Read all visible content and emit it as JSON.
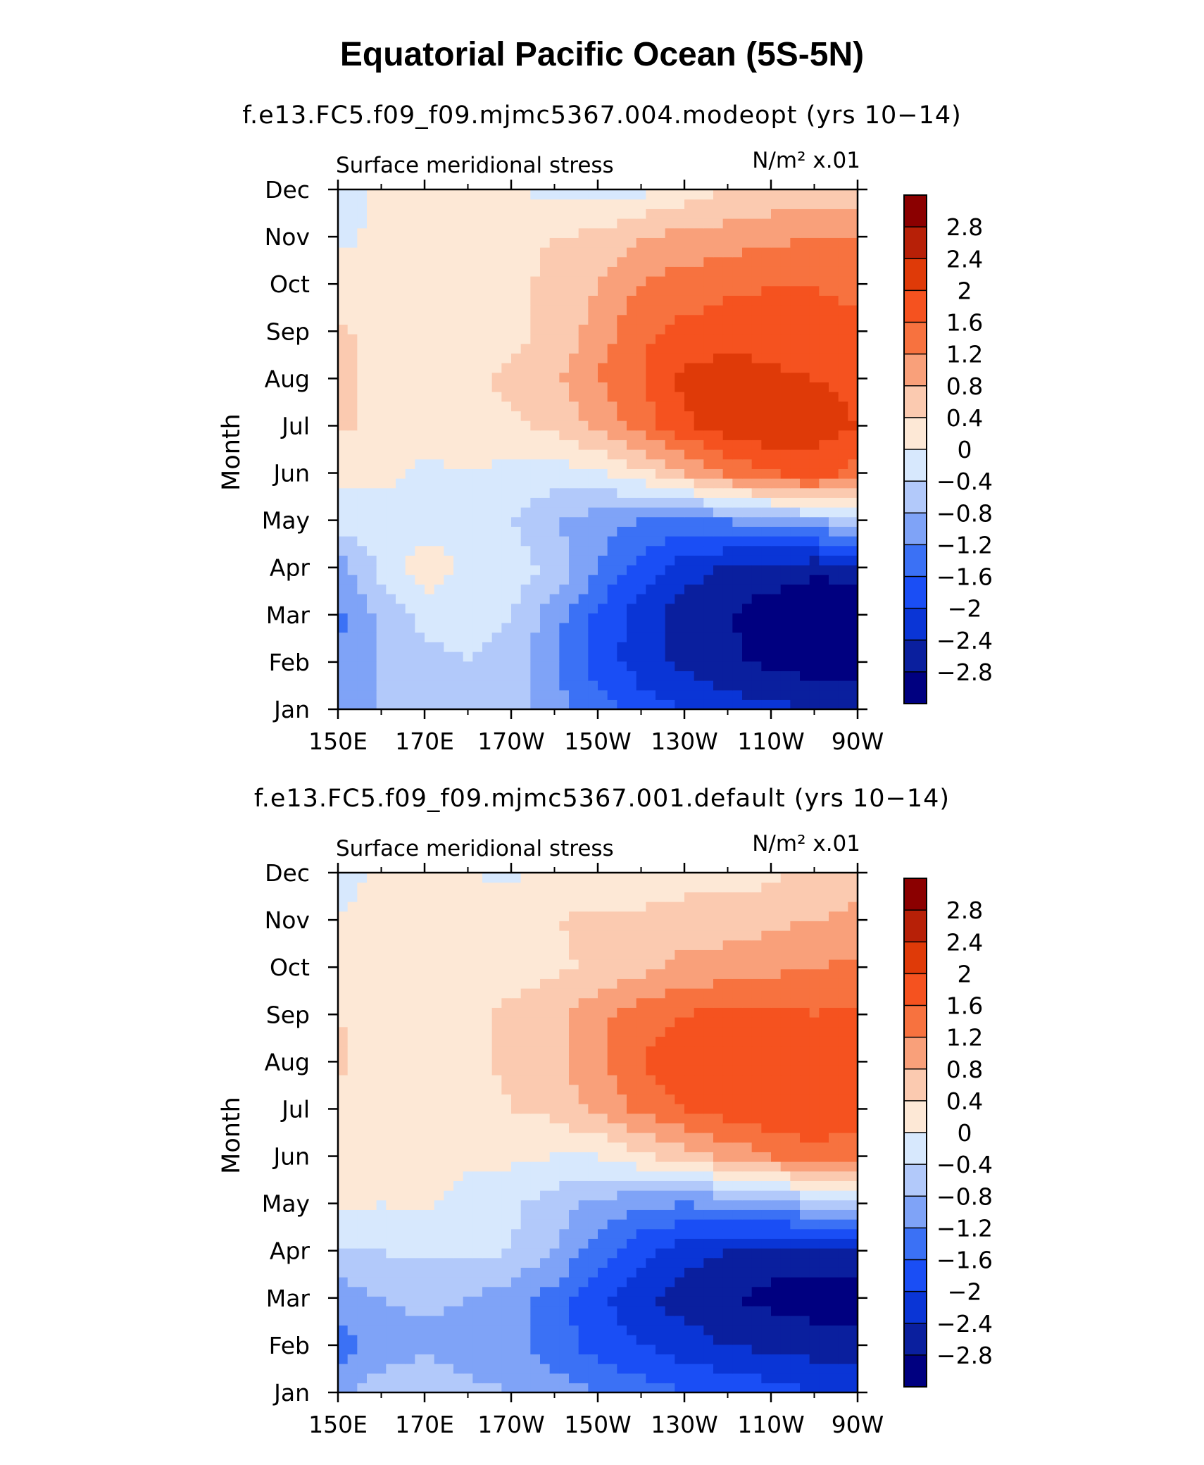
{
  "figure": {
    "title": "Equatorial Pacific Ocean (5S-5N)"
  },
  "palette": {
    "levels": [
      -2.8,
      -2.4,
      -2,
      -1.6,
      -1.2,
      -0.8,
      -0.4,
      0,
      0.4,
      0.8,
      1.2,
      1.6,
      2,
      2.4,
      2.8
    ],
    "colors": [
      "#000080",
      "#0a1f9e",
      "#0a35d6",
      "#1a4ef5",
      "#3b71f5",
      "#7fa3f7",
      "#b2c9fa",
      "#d7e8fd",
      "#fde8d6",
      "#fbcab0",
      "#f9a07a",
      "#f7723f",
      "#f5521f",
      "#df3a08",
      "#b72007",
      "#8b0000"
    ]
  },
  "chart_data": [
    {
      "type": "heatmap",
      "subtitle": "f.e13.FC5.f09_f09.mjmc5367.004.modeopt (yrs 10−14)",
      "left_label": "Surface meridional stress",
      "right_label": "N/m² x.01",
      "ylabel": "Month",
      "xlabel": "",
      "x_tick_labels": [
        "150E",
        "170E",
        "170W",
        "150W",
        "130W",
        "110W",
        "90W"
      ],
      "y_tick_labels": [
        "Jan",
        "Feb",
        "Mar",
        "Apr",
        "May",
        "Jun",
        "Jul",
        "Aug",
        "Sep",
        "Oct",
        "Nov",
        "Dec"
      ],
      "x": [
        150,
        160,
        170,
        180,
        190,
        200,
        210,
        220,
        230,
        240,
        250,
        260,
        270
      ],
      "y": [
        "Jan",
        "Feb",
        "Mar",
        "Apr",
        "May",
        "Jun",
        "Jul",
        "Aug",
        "Sep",
        "Oct",
        "Nov",
        "Dec"
      ],
      "z": [
        [
          -1.0,
          -0.8,
          -0.6,
          -0.5,
          -0.6,
          -1.0,
          -1.4,
          -1.8,
          -2.0,
          -2.2,
          -2.3,
          -2.4,
          -2.5
        ],
        [
          -1.2,
          -0.8,
          -0.5,
          -0.4,
          -0.5,
          -1.2,
          -1.8,
          -2.2,
          -2.5,
          -2.7,
          -2.9,
          -3.0,
          -3.0
        ],
        [
          -1.3,
          -0.7,
          -0.3,
          -0.3,
          -0.4,
          -1.0,
          -1.7,
          -2.2,
          -2.6,
          -2.8,
          -3.0,
          -3.2,
          -3.1
        ],
        [
          -1.0,
          -0.3,
          0.3,
          -0.1,
          -0.2,
          -0.5,
          -1.2,
          -1.8,
          -2.2,
          -2.5,
          -2.6,
          -2.7,
          -2.6
        ],
        [
          -0.2,
          -0.2,
          -0.2,
          -0.3,
          -0.4,
          -0.8,
          -1.0,
          -1.2,
          -1.3,
          -1.2,
          -1.0,
          -0.8,
          -0.6
        ],
        [
          0.1,
          0.1,
          -0.1,
          0.0,
          -0.1,
          -0.2,
          -0.1,
          0.3,
          0.8,
          1.3,
          1.6,
          1.8,
          1.4
        ],
        [
          0.5,
          0.2,
          0.2,
          0.2,
          0.3,
          0.5,
          0.9,
          1.4,
          1.9,
          2.2,
          2.3,
          2.2,
          2.0
        ],
        [
          0.6,
          0.2,
          0.2,
          0.3,
          0.5,
          0.7,
          1.2,
          1.6,
          2.1,
          2.2,
          2.1,
          2.0,
          1.9
        ],
        [
          0.5,
          0.2,
          0.2,
          0.2,
          0.3,
          0.5,
          1.0,
          1.5,
          1.7,
          1.8,
          1.8,
          1.7,
          1.7
        ],
        [
          0.2,
          0.1,
          0.1,
          0.1,
          0.3,
          0.5,
          0.8,
          1.2,
          1.4,
          1.5,
          1.6,
          1.6,
          1.5
        ],
        [
          -0.1,
          0.1,
          0.2,
          0.2,
          0.3,
          0.4,
          0.5,
          0.8,
          0.9,
          1.0,
          1.1,
          1.2,
          1.2
        ],
        [
          -0.2,
          0.1,
          0.1,
          0.1,
          0.0,
          -0.1,
          -0.2,
          -0.1,
          0.2,
          0.4,
          0.5,
          0.6,
          0.6
        ]
      ],
      "colorbar": {
        "levels": [
          -2.8,
          -2.4,
          -2,
          -1.6,
          -1.2,
          -0.8,
          -0.4,
          0,
          0.4,
          0.8,
          1.2,
          1.6,
          2,
          2.4,
          2.8
        ],
        "labels": [
          "−2.8",
          "−2.4",
          "−2",
          "−1.6",
          "−1.2",
          "−0.8",
          "−0.4",
          "0",
          "0.4",
          "0.8",
          "1.2",
          "1.6",
          "2",
          "2.4",
          "2.8"
        ]
      }
    },
    {
      "type": "heatmap",
      "subtitle": "f.e13.FC5.f09_f09.mjmc5367.001.default (yrs 10−14)",
      "left_label": "Surface meridional stress",
      "right_label": "N/m² x.01",
      "ylabel": "Month",
      "xlabel": "",
      "x_tick_labels": [
        "150E",
        "170E",
        "170W",
        "150W",
        "130W",
        "110W",
        "90W"
      ],
      "y_tick_labels": [
        "Jan",
        "Feb",
        "Mar",
        "Apr",
        "May",
        "Jun",
        "Jul",
        "Aug",
        "Sep",
        "Oct",
        "Nov",
        "Dec"
      ],
      "x": [
        150,
        160,
        170,
        180,
        190,
        200,
        210,
        220,
        230,
        240,
        250,
        260,
        270
      ],
      "y": [
        "Jan",
        "Feb",
        "Mar",
        "Apr",
        "May",
        "Jun",
        "Jul",
        "Aug",
        "Sep",
        "Oct",
        "Nov",
        "Dec"
      ],
      "z": [
        [
          -0.9,
          -0.6,
          -0.5,
          -0.7,
          -0.8,
          -1.0,
          -1.2,
          -1.4,
          -1.6,
          -1.7,
          -1.8,
          -2.0,
          -2.2
        ],
        [
          -1.4,
          -1.0,
          -0.9,
          -1.0,
          -1.1,
          -1.4,
          -1.8,
          -2.0,
          -2.2,
          -2.4,
          -2.5,
          -2.6,
          -2.6
        ],
        [
          -1.0,
          -0.8,
          -0.7,
          -0.8,
          -1.0,
          -1.4,
          -1.9,
          -2.3,
          -2.6,
          -2.8,
          -2.9,
          -3.0,
          -3.0
        ],
        [
          -0.5,
          -0.4,
          -0.3,
          -0.3,
          -0.4,
          -0.8,
          -1.4,
          -1.9,
          -2.2,
          -2.4,
          -2.6,
          -2.6,
          -2.5
        ],
        [
          0.1,
          0.0,
          0.1,
          -0.2,
          -0.3,
          -0.6,
          -0.9,
          -1.1,
          -1.2,
          -1.1,
          -0.9,
          -0.7,
          -0.5
        ],
        [
          0.1,
          0.1,
          0.2,
          0.1,
          0.1,
          0.0,
          0.0,
          0.3,
          0.6,
          0.9,
          1.2,
          1.4,
          1.3
        ],
        [
          0.3,
          0.2,
          0.2,
          0.2,
          0.4,
          0.5,
          0.9,
          1.3,
          1.6,
          1.8,
          1.9,
          2.0,
          1.8
        ],
        [
          0.5,
          0.2,
          0.2,
          0.3,
          0.5,
          0.7,
          1.1,
          1.6,
          1.9,
          1.9,
          1.8,
          1.7,
          1.7
        ],
        [
          0.4,
          0.2,
          0.2,
          0.3,
          0.5,
          0.7,
          1.1,
          1.4,
          1.6,
          1.7,
          1.7,
          1.6,
          1.7
        ],
        [
          0.2,
          0.3,
          0.2,
          0.1,
          0.2,
          0.3,
          0.5,
          0.7,
          0.9,
          1.0,
          1.1,
          1.2,
          1.3
        ],
        [
          0.0,
          0.2,
          0.2,
          0.2,
          0.3,
          0.4,
          0.5,
          0.5,
          0.6,
          0.6,
          0.7,
          0.8,
          0.9
        ],
        [
          -0.2,
          0.1,
          0.1,
          0.0,
          -0.1,
          0.1,
          0.1,
          0.1,
          0.2,
          0.2,
          0.3,
          0.5,
          0.6
        ]
      ],
      "colorbar": {
        "levels": [
          -2.8,
          -2.4,
          -2,
          -1.6,
          -1.2,
          -0.8,
          -0.4,
          0,
          0.4,
          0.8,
          1.2,
          1.6,
          2,
          2.4,
          2.8
        ],
        "labels": [
          "−2.8",
          "−2.4",
          "−2",
          "−1.6",
          "−1.2",
          "−0.8",
          "−0.4",
          "0",
          "0.4",
          "0.8",
          "1.2",
          "1.6",
          "2",
          "2.4",
          "2.8"
        ]
      }
    }
  ]
}
